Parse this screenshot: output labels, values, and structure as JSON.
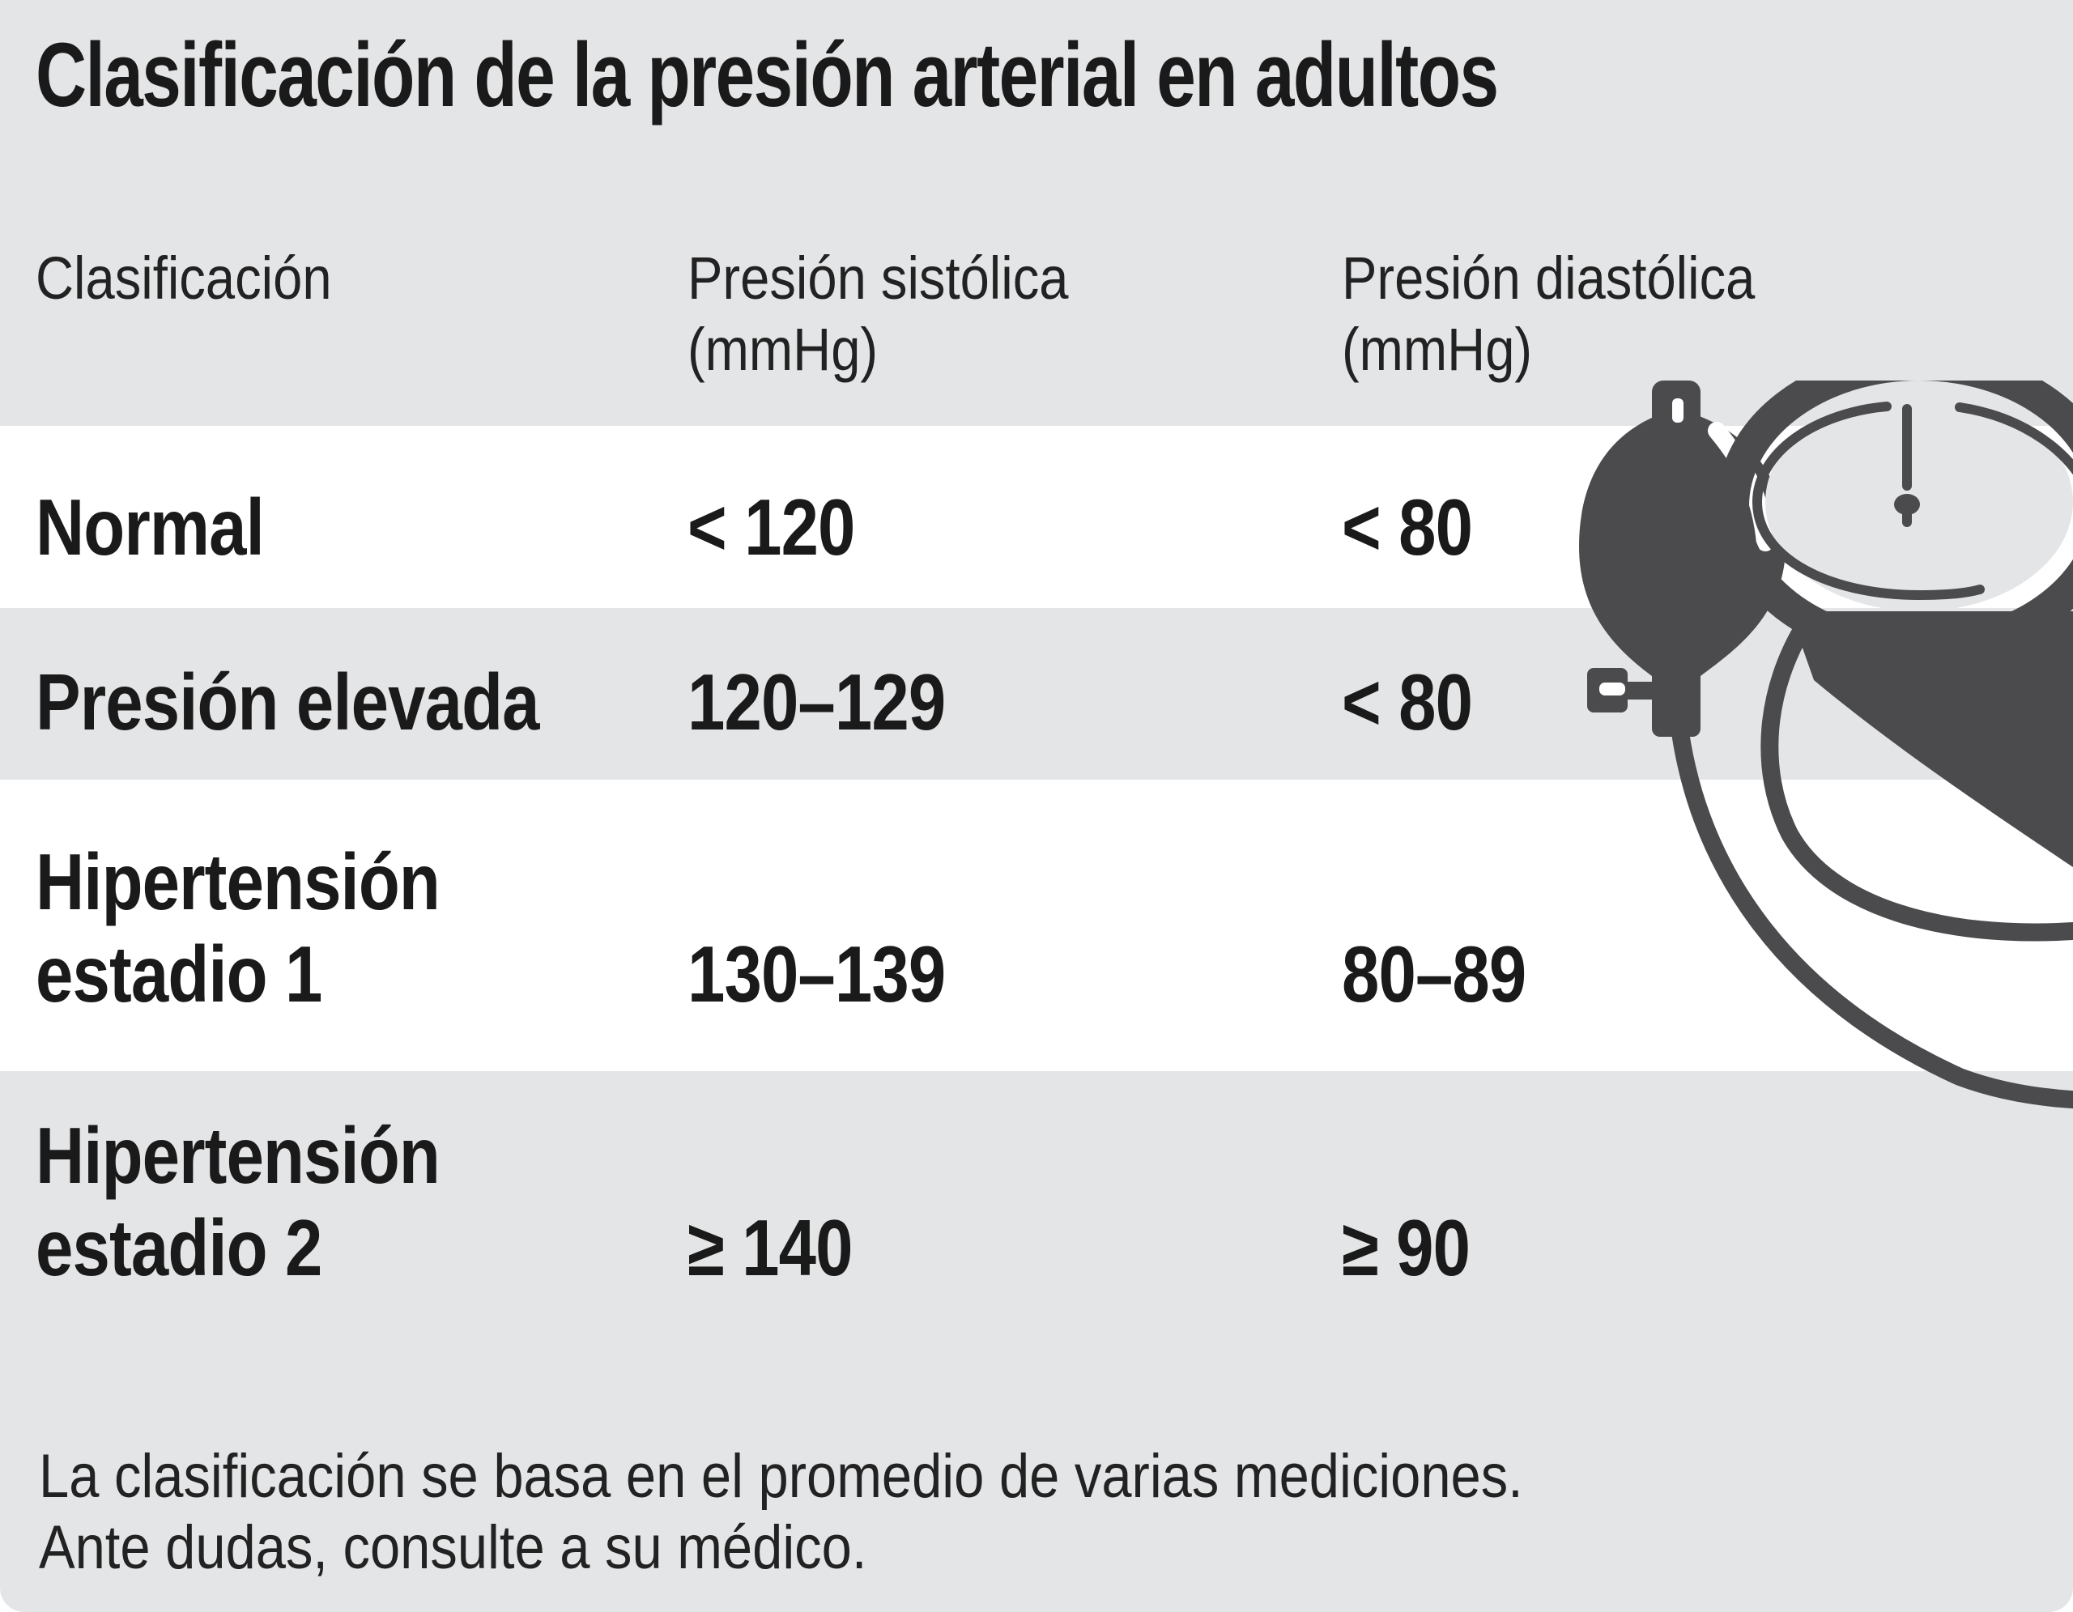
{
  "title": "Clasificación de la presión arterial en adultos",
  "headers": {
    "classification": "Clasificación",
    "systolic_line1": "Presión sistólica",
    "systolic_line2": "(mmHg)",
    "diastolic_line1": "Presión diastólica",
    "diastolic_line2": "(mmHg)"
  },
  "rows": [
    {
      "label_line1": "Normal",
      "label_line2": "",
      "systolic": "< 120",
      "diastolic": "< 80"
    },
    {
      "label_line1": "Presión elevada",
      "label_line2": "",
      "systolic": "120–129",
      "diastolic": "< 80"
    },
    {
      "label_line1": "Hipertensión",
      "label_line2": "estadio 1",
      "systolic": "130–139",
      "diastolic": "80–89"
    },
    {
      "label_line1": "Hipertensión",
      "label_line2": "estadio 2",
      "systolic": "≥ 140",
      "diastolic": "≥ 90"
    }
  ],
  "footer": {
    "line1": "La clasificación se basa en el promedio de varias mediciones.",
    "line2": "Ante dudas, consulte a su médico."
  },
  "colors": {
    "background": "#e4e5e7",
    "row_alt": "#ffffff",
    "icon": "#4b4b4d",
    "text": "#1a1a1a"
  },
  "icon": "sphygmomanometer-icon"
}
